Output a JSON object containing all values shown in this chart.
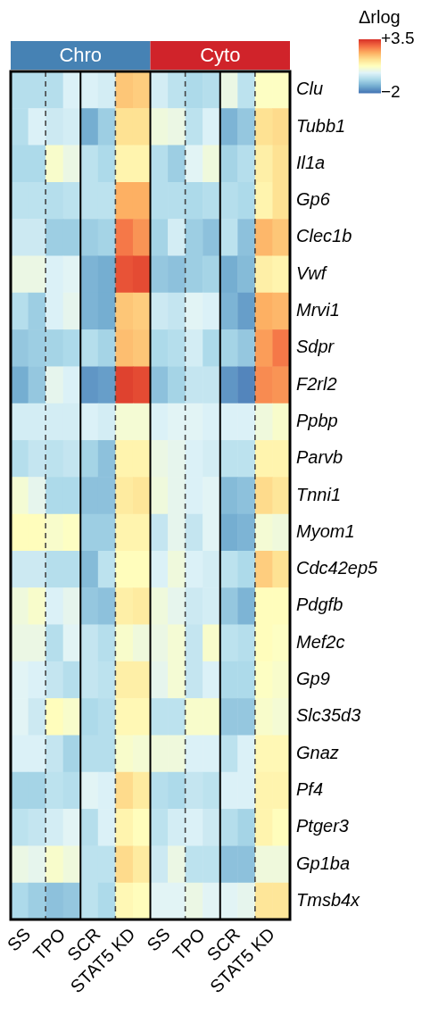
{
  "chart_data": {
    "type": "heatmap",
    "clabel": "Δrlog",
    "annotations": [
      "Chro",
      "Cyto"
    ],
    "categories": [
      "SS",
      null,
      "TPO",
      null,
      "SCR",
      null,
      "STAT5 KD",
      null,
      "SS",
      null,
      "TPO",
      null,
      "SCR",
      null,
      "STAT5 KD",
      null
    ],
    "y_categories": [
      "Clu",
      "Tubb1",
      "Il1a",
      "Gp6",
      "Clec1b",
      "Vwf",
      "Mrvi1",
      "Sdpr",
      "F2rl2",
      "Ppbp",
      "Parvb",
      "Tnni1",
      "Myom1",
      "Cdc42ep5",
      "Pdgfb",
      "Mef2c",
      "Gp9",
      "Slc35d3",
      "Gnaz",
      "Pf4",
      "Ptger3",
      "Gp1ba",
      "Tmsb4x"
    ],
    "cells": [
      [
        -0.5,
        -0.5,
        -0.5,
        0,
        0,
        -0.1,
        1.8,
        1.7,
        -0.1,
        -0.4,
        -0.6,
        -0.5,
        0.3,
        -0.4,
        0.7,
        0.7
      ],
      [
        -0.5,
        0,
        -0.2,
        -0.1,
        -1.3,
        -0.8,
        1.4,
        1.4,
        0.4,
        0.3,
        -0.4,
        0,
        -1.2,
        -0.9,
        1.4,
        1.5
      ],
      [
        -0.6,
        -0.6,
        0.6,
        0.3,
        -0.4,
        -0.6,
        1,
        1,
        -0.5,
        -0.8,
        0.1,
        0.4,
        -0.7,
        -0.5,
        1.1,
        1.4
      ],
      [
        -0.4,
        -0.4,
        -0.5,
        -0.4,
        -0.4,
        -0.4,
        2.1,
        2.1,
        -0.5,
        -0.5,
        -0.6,
        -0.5,
        -0.5,
        -0.6,
        1,
        1.4
      ],
      [
        -0.2,
        -0.2,
        -0.8,
        -0.8,
        -0.8,
        -0.7,
        2.7,
        2.4,
        -0.7,
        -0.1,
        -0.8,
        -1,
        -0.4,
        -1,
        2,
        1.8
      ],
      [
        0.3,
        0.3,
        0,
        0.1,
        -1.2,
        -1.3,
        3.1,
        3.2,
        -0.9,
        -1,
        -0.8,
        -0.7,
        -1.3,
        -1.1,
        1.1,
        1
      ],
      [
        -0.5,
        -0.8,
        0,
        0.2,
        -1.2,
        -1.3,
        1.8,
        1.7,
        -0.2,
        -0.3,
        0.1,
        0,
        -1.2,
        -1.5,
        2.1,
        2
      ],
      [
        -0.9,
        -0.8,
        -0.7,
        -0.6,
        -0.5,
        -0.7,
        1.9,
        1.8,
        -0.6,
        -0.5,
        -0.1,
        -0.6,
        -0.7,
        -0.9,
        2.3,
        2.7
      ],
      [
        -1.3,
        -0.9,
        0.2,
        0,
        -1.6,
        -1.5,
        3.3,
        3.2,
        -1,
        -0.7,
        -0.3,
        -0.3,
        -1.6,
        -1.8,
        2.5,
        2.4
      ],
      [
        -0.1,
        -0.1,
        -0.1,
        -0.1,
        0,
        -0.1,
        0.5,
        0.5,
        0,
        0.1,
        0.1,
        0,
        0,
        0,
        0.4,
        0.6
      ],
      [
        -0.5,
        -0.3,
        -0.4,
        -0.3,
        -0.7,
        -1,
        1,
        1,
        0.3,
        0.2,
        0,
        -0.1,
        -0.4,
        -0.4,
        1,
        1
      ],
      [
        0.5,
        0.2,
        -0.6,
        -0.6,
        -1,
        -1,
        1.2,
        1.3,
        0.4,
        0.2,
        0,
        0.1,
        -1.1,
        -1,
        1.5,
        1.3
      ],
      [
        0.8,
        0.8,
        0.6,
        0.7,
        -0.8,
        -0.8,
        1,
        1,
        -0.3,
        0.2,
        -0.3,
        0.1,
        -1.3,
        -1.2,
        0.5,
        0.4
      ],
      [
        -0.2,
        -0.2,
        -0.5,
        -0.5,
        -1.1,
        -0.4,
        0.8,
        0.8,
        0,
        0.4,
        0,
        -0.1,
        -0.4,
        -0.6,
        1.7,
        1.4
      ],
      [
        0.4,
        0.6,
        0,
        0.2,
        -0.9,
        -1,
        1.1,
        1.2,
        0.4,
        0.2,
        -0.2,
        -0.1,
        -0.9,
        -1.2,
        0.8,
        0.8
      ],
      [
        0.3,
        0.3,
        -0.5,
        0.1,
        -0.3,
        -0.5,
        0.6,
        0.4,
        0.3,
        0.5,
        -0.3,
        0.6,
        -0.4,
        -0.5,
        0.8,
        0.7
      ],
      [
        0.1,
        0,
        -0.3,
        -0.5,
        -0.3,
        -0.4,
        1.1,
        1.1,
        0.2,
        0.5,
        -0.3,
        0,
        -0.6,
        -0.6,
        0.7,
        0.6
      ],
      [
        0.1,
        -0.2,
        0.8,
        0.6,
        -0.6,
        -0.5,
        0.9,
        0.9,
        -0.4,
        -0.4,
        0.6,
        0.6,
        -0.9,
        -0.9,
        0.6,
        0.5
      ],
      [
        0,
        0,
        -0.3,
        -0.7,
        -0.5,
        -0.5,
        0.6,
        0.5,
        0.4,
        0.4,
        0,
        0,
        -0.4,
        0,
        0.9,
        0.9
      ],
      [
        -0.7,
        -0.7,
        -0.4,
        -0.5,
        0.1,
        0,
        1.5,
        1.2,
        -0.5,
        -0.6,
        -0.3,
        -0.4,
        0,
        0,
        1,
        1
      ],
      [
        -0.4,
        -0.3,
        -0.1,
        0.1,
        -0.5,
        0,
        1,
        0.8,
        -0.4,
        -0.1,
        0,
        -0.2,
        -0.5,
        -0.7,
        1,
        0.8
      ],
      [
        0.3,
        0.2,
        0.6,
        0.4,
        -0.4,
        -0.4,
        1.5,
        1.2,
        -0.2,
        0.3,
        -0.4,
        -0.4,
        -1,
        -1,
        0.4,
        0.4
      ],
      [
        -0.6,
        -0.8,
        -1,
        -0.9,
        -0.4,
        -0.6,
        0.9,
        0.8,
        0.1,
        0.1,
        0.3,
        0.1,
        0.1,
        0.2,
        1.3,
        1.3
      ]
    ],
    "clim": [
      -2,
      3.5
    ],
    "grid": true,
    "cticks": [
      {
        "value": 3.5,
        "label": "+3.5"
      },
      {
        "value": -2,
        "label": "−2"
      }
    ]
  }
}
